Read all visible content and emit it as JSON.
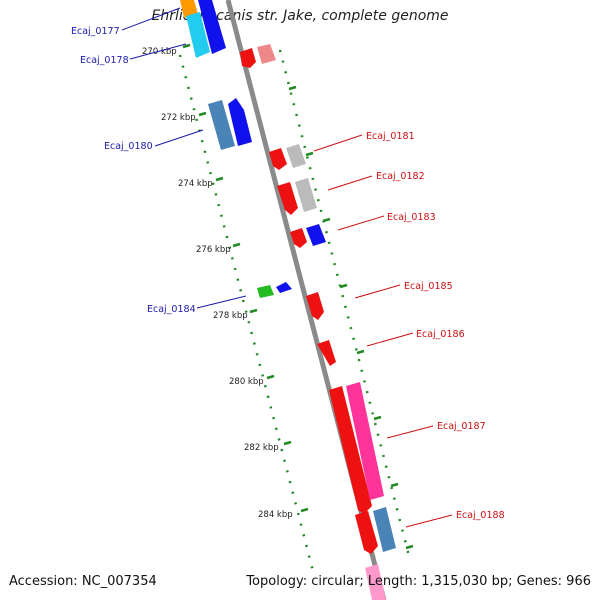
{
  "title": "Ehrlichia canis str. Jake, complete genome",
  "footer": {
    "accession": "Accession: NC_007354",
    "summary": "Topology: circular; Length: 1,315,030 bp; Genes: 966"
  },
  "scale_labels": [
    "270 kbp",
    "272 kbp",
    "274 kbp",
    "276 kbp",
    "278 kbp",
    "280 kbp",
    "282 kbp",
    "284 kbp"
  ],
  "genes_left": [
    "Ecaj_0177",
    "Ecaj_0178",
    "Ecaj_0180",
    "Ecaj_0184"
  ],
  "genes_right": [
    "Ecaj_0181",
    "Ecaj_0182",
    "Ecaj_0183",
    "Ecaj_0185",
    "Ecaj_0186",
    "Ecaj_0187",
    "Ecaj_0188"
  ],
  "colors": {
    "red": "#ee1111",
    "blue": "#1111ee",
    "steel": "#4a84b6",
    "cyan": "#22ccee",
    "gray": "#bbbbbb",
    "pink": "#ff3399",
    "green": "#22bb22",
    "backbone": "#888888",
    "dots": "#228822",
    "label_blue": "#1a1aa8",
    "label_red": "#cc1111"
  }
}
